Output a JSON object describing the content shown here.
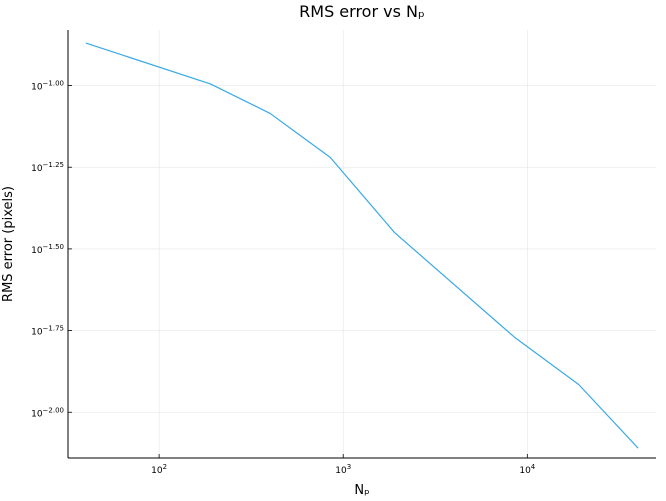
{
  "chart_data": {
    "type": "line",
    "title": "RMS error vs Nₚ",
    "xlabel": "Nₚ",
    "ylabel": "RMS error (pixels)",
    "x_scale": "log",
    "y_scale": "log",
    "xlim": [
      32,
      50000
    ],
    "ylim": [
      -2.14,
      -0.83
    ],
    "grid": true,
    "legend": "none",
    "x_ticks": [
      {
        "value": 100,
        "label_base": "10",
        "label_exp": "2"
      },
      {
        "value": 1000,
        "label_base": "10",
        "label_exp": "3"
      },
      {
        "value": 10000,
        "label_base": "10",
        "label_exp": "4"
      }
    ],
    "y_ticks": [
      {
        "value": -1.0,
        "label_base": "10",
        "label_exp": "−1.00"
      },
      {
        "value": -1.25,
        "label_base": "10",
        "label_exp": "−1.25"
      },
      {
        "value": -1.5,
        "label_base": "10",
        "label_exp": "−1.50"
      },
      {
        "value": -1.75,
        "label_base": "10",
        "label_exp": "−1.75"
      },
      {
        "value": -2.0,
        "label_base": "10",
        "label_exp": "−2.00"
      }
    ],
    "series": [
      {
        "color": "#3aa9e6",
        "x": [
          40,
          190,
          400,
          850,
          1900,
          8500,
          19000,
          40000
        ],
        "log10_y": [
          -0.87,
          -0.995,
          -1.085,
          -1.22,
          -1.45,
          -1.77,
          -1.915,
          -2.11
        ]
      }
    ]
  }
}
